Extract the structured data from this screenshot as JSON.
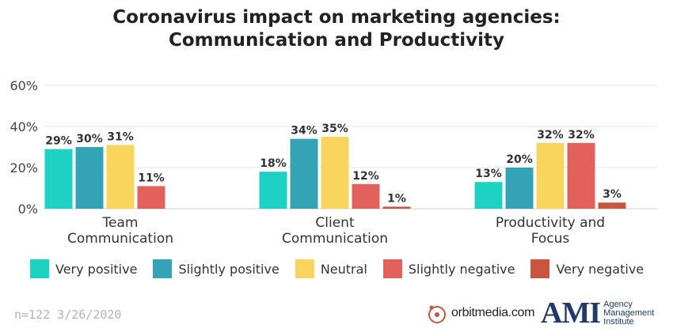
{
  "chart_data": {
    "type": "bar",
    "title_line1": "Coronavirus impact on marketing agencies:",
    "title_line2": "Communication and Productivity",
    "categories": [
      [
        "Team",
        "Communication"
      ],
      [
        "Client",
        "Communication"
      ],
      [
        "Productivity and",
        "Focus"
      ]
    ],
    "series": [
      {
        "name": "Very positive",
        "color": "#1ed2c3",
        "values": [
          29,
          18,
          13
        ]
      },
      {
        "name": "Slightly positive",
        "color": "#35a3b6",
        "values": [
          30,
          34,
          20
        ]
      },
      {
        "name": "Neutral",
        "color": "#f9d55e",
        "values": [
          31,
          35,
          32
        ]
      },
      {
        "name": "Slightly negative",
        "color": "#e2615c",
        "values": [
          11,
          12,
          32
        ]
      },
      {
        "name": "Very negative",
        "color": "#c8563f",
        "values": [
          0,
          1,
          3
        ]
      }
    ],
    "value_labels": [
      [
        "29%",
        "30%",
        "31%",
        "11%",
        ""
      ],
      [
        "18%",
        "34%",
        "35%",
        "12%",
        "1%"
      ],
      [
        "13%",
        "20%",
        "32%",
        "32%",
        "3%"
      ]
    ],
    "yticks": [
      "0%",
      "20%",
      "40%",
      "60%"
    ],
    "ytick_values": [
      0,
      20,
      40,
      60
    ],
    "ylim": [
      0,
      60
    ],
    "grid": true,
    "legend_position": "bottom"
  },
  "footnote": "n=122 3/26/2020",
  "logos": {
    "orbit": "orbitmedia.com",
    "ami_mark": "AMI",
    "ami_line1": "Agency",
    "ami_line2": "Management",
    "ami_line3": "Institute"
  }
}
